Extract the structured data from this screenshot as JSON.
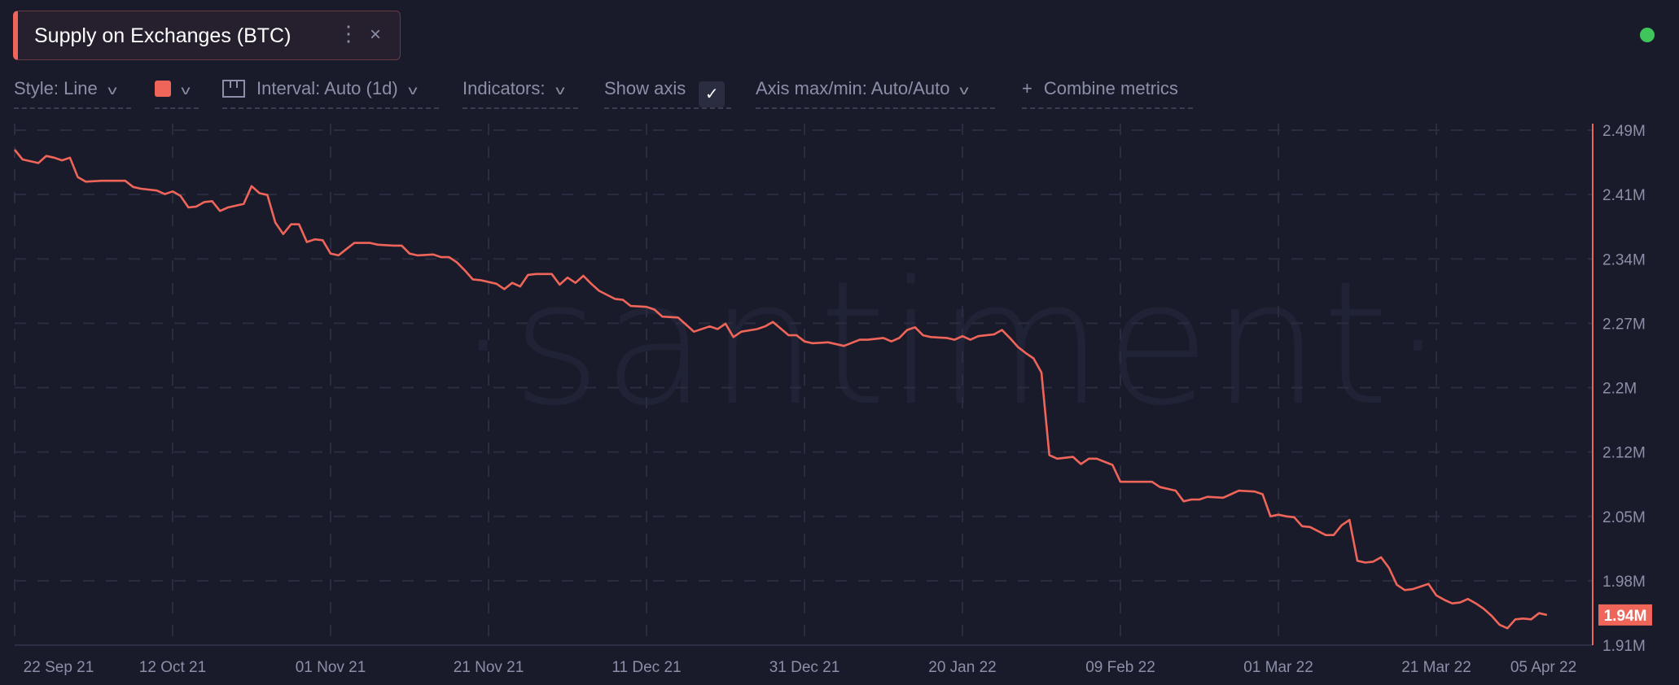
{
  "metric_card": {
    "title": "Supply on Exchanges (BTC)",
    "menu_icon": "vertical-dots-icon",
    "close_label": "×"
  },
  "status": {
    "color": "#3fc65b"
  },
  "toolbar": {
    "style_label": "Style: Line",
    "color_value": "#f0655a",
    "interval_label": "Interval: Auto (1d)",
    "indicators_label": "Indicators:",
    "show_axis_label": "Show axis",
    "show_axis_checked": true,
    "axis_maxmin_label": "Axis max/min: Auto/Auto",
    "combine_label": "Combine metrics",
    "combine_icon": "+"
  },
  "watermark": "·santiment·",
  "chart_data": {
    "type": "line",
    "title": "Supply on Exchanges (BTC)",
    "line_color": "#f0655a",
    "grid": true,
    "y_axis_position": "right",
    "ylim": [
      1.91,
      2.49
    ],
    "y_unit": "M",
    "y_ticks": [
      "2.49M",
      "2.41M",
      "2.34M",
      "2.27M",
      "2.2M",
      "2.12M",
      "2.05M",
      "1.98M",
      "1.91M"
    ],
    "x_ticks": [
      {
        "date": "2021-09-22",
        "label": "22 Sep 21"
      },
      {
        "date": "2021-10-12",
        "label": "12 Oct 21"
      },
      {
        "date": "2021-11-01",
        "label": "01 Nov 21"
      },
      {
        "date": "2021-11-21",
        "label": "21 Nov 21"
      },
      {
        "date": "2021-12-11",
        "label": "11 Dec 21"
      },
      {
        "date": "2021-12-31",
        "label": "31 Dec 21"
      },
      {
        "date": "2022-01-20",
        "label": "20 Jan 22"
      },
      {
        "date": "2022-02-09",
        "label": "09 Feb 22"
      },
      {
        "date": "2022-03-01",
        "label": "01 Mar 22"
      },
      {
        "date": "2022-03-21",
        "label": "21 Mar 22"
      },
      {
        "date": "2022-04-05",
        "label": "05 Apr 22"
      }
    ],
    "last_value_label": "1.94M",
    "series": [
      {
        "x": [
          "2021-09-22",
          "2021-09-23",
          "2021-09-25",
          "2021-09-26",
          "2021-09-27",
          "2021-09-28",
          "2021-09-29",
          "2021-09-30",
          "2021-10-01",
          "2021-10-03",
          "2021-10-06",
          "2021-10-07",
          "2021-10-08",
          "2021-10-10",
          "2021-10-11",
          "2021-10-12",
          "2021-10-13",
          "2021-10-14",
          "2021-10-15",
          "2021-10-16",
          "2021-10-17",
          "2021-10-18",
          "2021-10-19",
          "2021-10-21",
          "2021-10-22",
          "2021-10-23",
          "2021-10-24",
          "2021-10-25",
          "2021-10-26",
          "2021-10-27",
          "2021-10-28",
          "2021-10-29",
          "2021-10-30",
          "2021-10-31",
          "2021-11-01",
          "2021-11-02",
          "2021-11-03",
          "2021-11-04",
          "2021-11-06",
          "2021-11-07",
          "2021-11-09",
          "2021-11-10",
          "2021-11-11",
          "2021-11-12",
          "2021-11-14",
          "2021-11-15",
          "2021-11-16",
          "2021-11-17",
          "2021-11-18",
          "2021-11-19",
          "2021-11-20",
          "2021-11-22",
          "2021-11-23",
          "2021-11-24",
          "2021-11-25",
          "2021-11-26",
          "2021-11-27",
          "2021-11-29",
          "2021-11-30",
          "2021-12-01",
          "2021-12-02",
          "2021-12-03",
          "2021-12-04",
          "2021-12-05",
          "2021-12-07",
          "2021-12-08",
          "2021-12-09",
          "2021-12-11",
          "2021-12-12",
          "2021-12-13",
          "2021-12-15",
          "2021-12-16",
          "2021-12-17",
          "2021-12-19",
          "2021-12-20",
          "2021-12-21",
          "2021-12-22",
          "2021-12-23",
          "2021-12-25",
          "2021-12-26",
          "2021-12-27",
          "2021-12-29",
          "2021-12-30",
          "2021-12-31",
          "2022-01-01",
          "2022-01-03",
          "2022-01-05",
          "2022-01-07",
          "2022-01-08",
          "2022-01-10",
          "2022-01-11",
          "2022-01-12",
          "2022-01-13",
          "2022-01-14",
          "2022-01-15",
          "2022-01-16",
          "2022-01-18",
          "2022-01-19",
          "2022-01-20",
          "2022-01-21",
          "2022-01-22",
          "2022-01-23",
          "2022-01-24",
          "2022-01-25",
          "2022-01-26",
          "2022-01-27",
          "2022-01-28",
          "2022-01-29",
          "2022-01-30",
          "2022-01-31",
          "2022-02-01",
          "2022-02-03",
          "2022-02-04",
          "2022-02-05",
          "2022-02-06",
          "2022-02-08",
          "2022-02-09",
          "2022-02-10",
          "2022-02-12",
          "2022-02-13",
          "2022-02-14",
          "2022-02-16",
          "2022-02-17",
          "2022-02-18",
          "2022-02-19",
          "2022-02-20",
          "2022-02-22",
          "2022-02-23",
          "2022-02-24",
          "2022-02-26",
          "2022-02-27",
          "2022-02-28",
          "2022-03-01",
          "2022-03-02",
          "2022-03-03",
          "2022-03-04",
          "2022-03-05",
          "2022-03-07",
          "2022-03-08",
          "2022-03-09",
          "2022-03-10",
          "2022-03-11",
          "2022-03-12",
          "2022-03-13",
          "2022-03-14",
          "2022-03-15",
          "2022-03-16",
          "2022-03-17",
          "2022-03-18",
          "2022-03-19",
          "2022-03-20",
          "2022-03-21",
          "2022-03-22",
          "2022-03-23",
          "2022-03-24",
          "2022-03-25",
          "2022-03-26",
          "2022-03-27",
          "2022-03-28",
          "2022-03-29",
          "2022-03-30",
          "2022-03-31",
          "2022-04-01",
          "2022-04-02",
          "2022-04-03",
          "2022-04-04"
        ],
        "values": [
          2.468,
          2.457,
          2.453,
          2.461,
          2.459,
          2.456,
          2.459,
          2.437,
          2.432,
          2.433,
          2.433,
          2.426,
          2.424,
          2.422,
          2.418,
          2.421,
          2.416,
          2.403,
          2.404,
          2.409,
          2.41,
          2.399,
          2.403,
          2.407,
          2.427,
          2.419,
          2.417,
          2.386,
          2.373,
          2.384,
          2.384,
          2.364,
          2.367,
          2.366,
          2.351,
          2.349,
          2.356,
          2.363,
          2.363,
          2.361,
          2.36,
          2.36,
          2.351,
          2.349,
          2.35,
          2.347,
          2.347,
          2.341,
          2.332,
          2.322,
          2.321,
          2.317,
          2.311,
          2.318,
          2.314,
          2.327,
          2.328,
          2.328,
          2.316,
          2.324,
          2.318,
          2.326,
          2.317,
          2.309,
          2.3,
          2.299,
          2.292,
          2.291,
          2.288,
          2.28,
          2.279,
          2.271,
          2.263,
          2.269,
          2.266,
          2.272,
          2.257,
          2.263,
          2.266,
          2.269,
          2.274,
          2.259,
          2.259,
          2.252,
          2.25,
          2.251,
          2.247,
          2.254,
          2.254,
          2.256,
          2.252,
          2.256,
          2.265,
          2.268,
          2.259,
          2.257,
          2.256,
          2.254,
          2.258,
          2.254,
          2.258,
          2.259,
          2.26,
          2.265,
          2.256,
          2.246,
          2.239,
          2.233,
          2.217,
          2.124,
          2.12,
          2.122,
          2.114,
          2.12,
          2.12,
          2.113,
          2.094,
          2.094,
          2.094,
          2.094,
          2.088,
          2.084,
          2.072,
          2.074,
          2.074,
          2.077,
          2.076,
          2.08,
          2.084,
          2.083,
          2.08,
          2.055,
          2.057,
          2.055,
          2.054,
          2.044,
          2.043,
          2.034,
          2.034,
          2.045,
          2.051,
          2.005,
          2.003,
          2.004,
          2.009,
          1.997,
          1.978,
          1.972,
          1.973,
          1.976,
          1.979,
          1.966,
          1.961,
          1.957,
          1.958,
          1.962,
          1.957,
          1.951,
          1.943,
          1.933,
          1.929,
          1.939,
          1.94,
          1.939,
          1.946,
          1.944
        ]
      }
    ]
  }
}
